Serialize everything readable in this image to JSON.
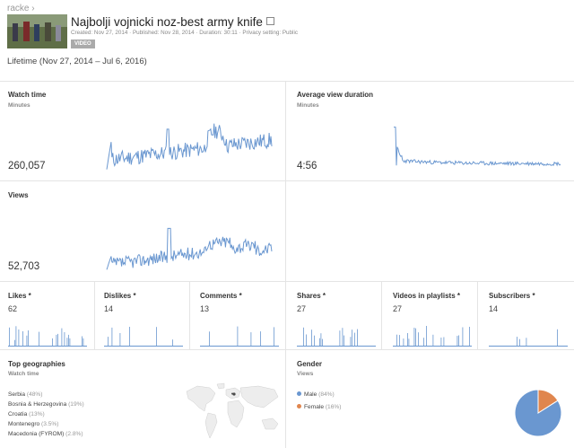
{
  "breadcrumb": "racke",
  "video": {
    "title": "Najbolji vojnicki noz-best army knife",
    "created": "Created: Nov 27, 2014",
    "published": "Published: Nov 28, 2014",
    "duration": "Duration: 30:11",
    "privacy": "Privacy setting: Public",
    "badge": "VIDEO"
  },
  "range_label": "Lifetime (Nov 27, 2014 – Jul 6, 2016)",
  "metrics": {
    "watch_time": {
      "title": "Watch time",
      "unit": "Minutes",
      "value": "260,057"
    },
    "avg_view_duration": {
      "title": "Average view duration",
      "unit": "Minutes",
      "value": "4:56"
    },
    "views": {
      "title": "Views",
      "value": "52,703"
    }
  },
  "engagement": [
    {
      "title": "Likes *",
      "value": "62"
    },
    {
      "title": "Dislikes *",
      "value": "14"
    },
    {
      "title": "Comments *",
      "value": "13"
    },
    {
      "title": "Shares *",
      "value": "27"
    },
    {
      "title": "Videos in playlists *",
      "value": "27"
    },
    {
      "title": "Subscribers *",
      "value": "14"
    }
  ],
  "geographies": {
    "title": "Top geographies",
    "unit": "Watch time",
    "items": [
      {
        "country": "Serbia",
        "pct": "(48%)"
      },
      {
        "country": "Bosnia & Herzegovina",
        "pct": "(19%)"
      },
      {
        "country": "Croatia",
        "pct": "(13%)"
      },
      {
        "country": "Montenegro",
        "pct": "(3.5%)"
      },
      {
        "country": "Macedonia (FYROM)",
        "pct": "(2.8%)"
      }
    ]
  },
  "gender": {
    "title": "Gender",
    "unit": "Views",
    "items": [
      {
        "label": "Male",
        "pct": "(84%)",
        "value": 84,
        "color": "#6a97d0"
      },
      {
        "label": "Female",
        "pct": "(16%)",
        "value": 16,
        "color": "#e0864e"
      }
    ]
  },
  "colors": {
    "line": "#6a97d0",
    "divider": "#e4e4e4"
  }
}
